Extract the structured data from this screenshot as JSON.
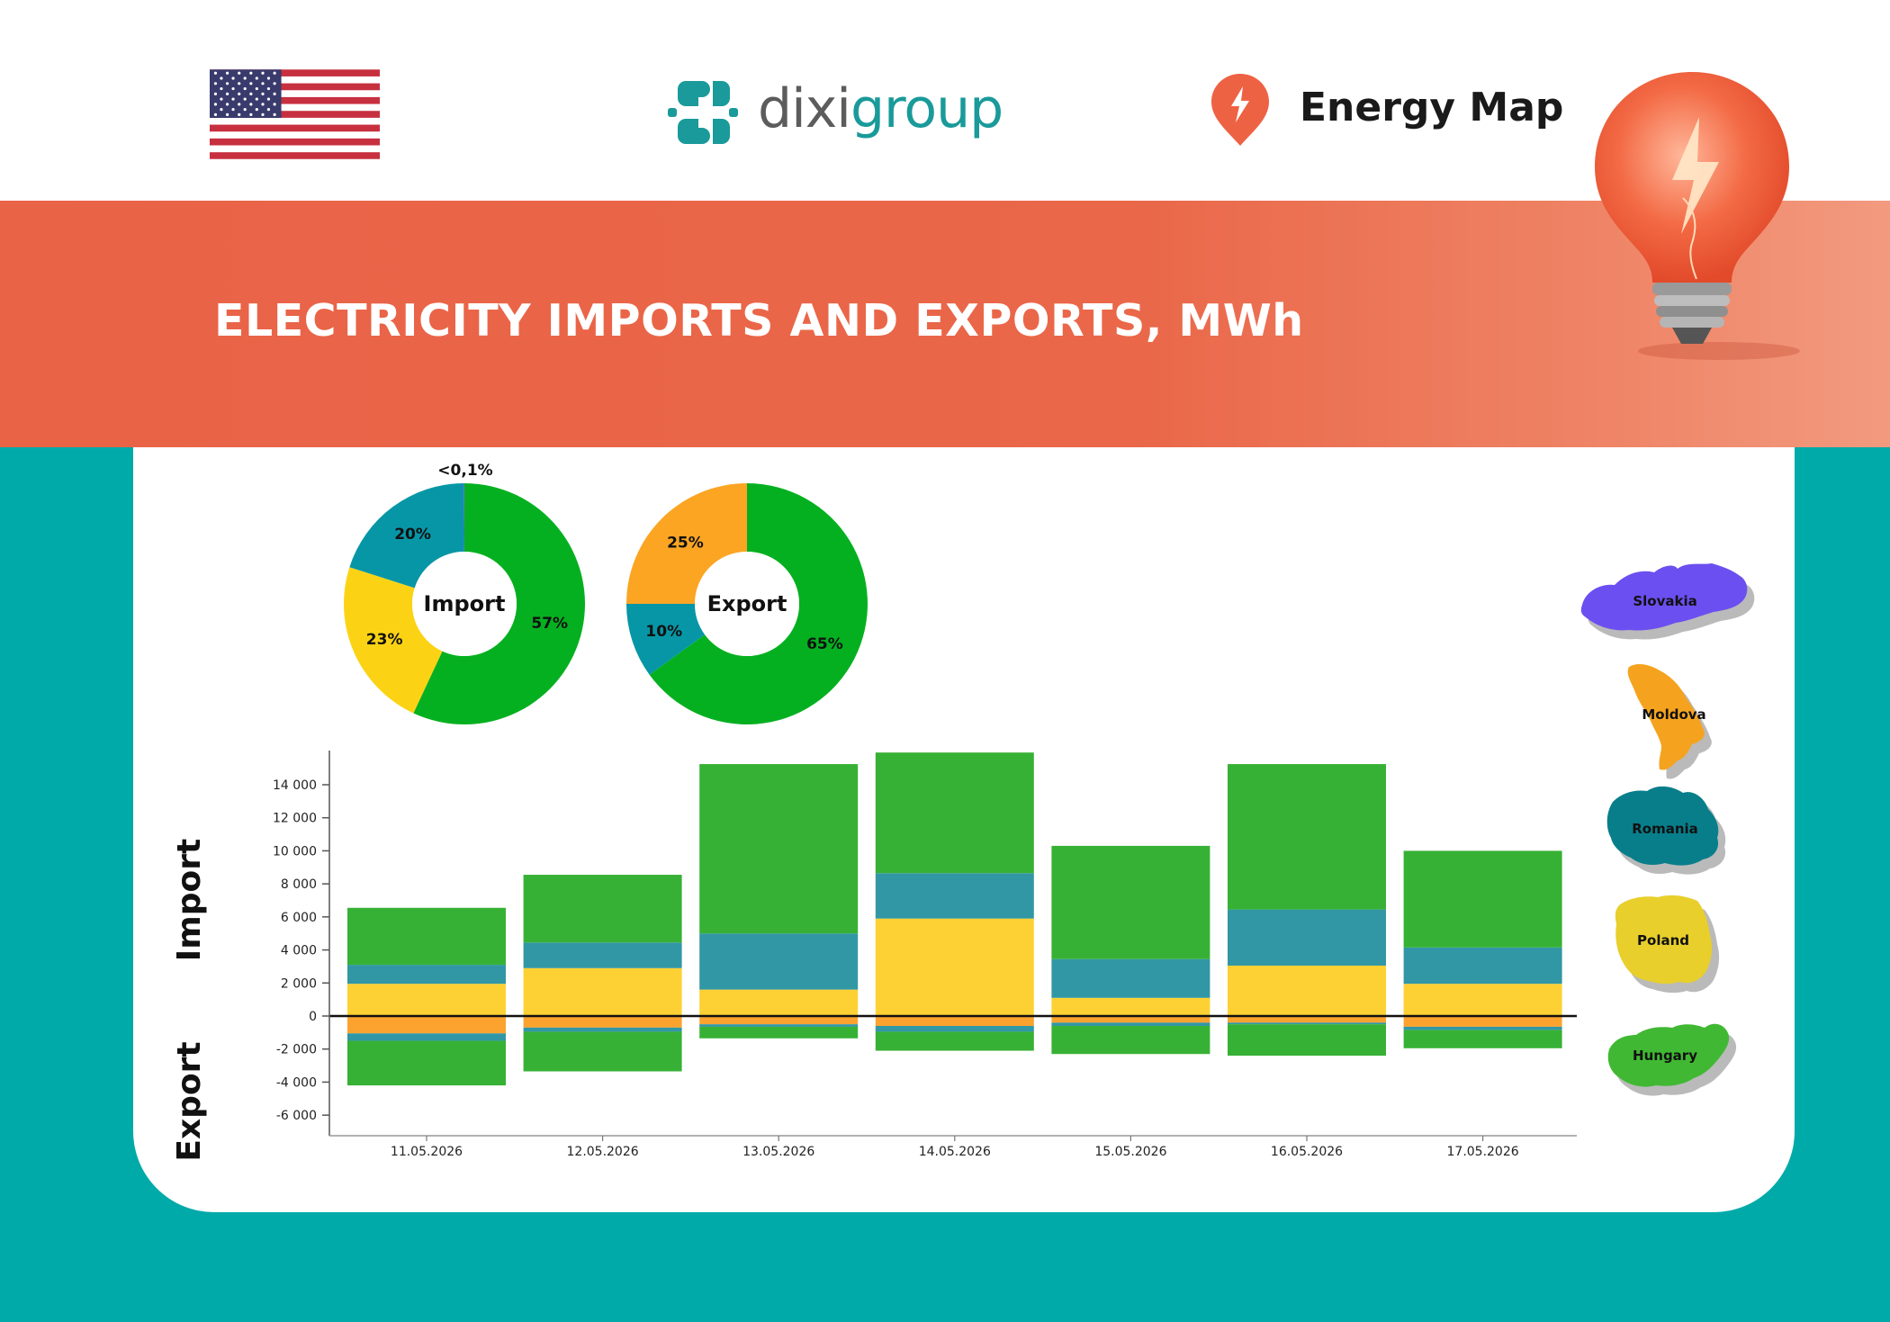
{
  "brand": {
    "dixi_prefix": "dixi",
    "dixi_suffix": "group",
    "energy_map": "Energy Map",
    "colors": {
      "title_band": "#e96347",
      "background": "#00aaa9",
      "dixi_teal": "#1a9a9a"
    }
  },
  "page": {
    "title": "ELECTRICITY IMPORTS AND EXPORTS, MWh"
  },
  "icons": [
    "us-flag-icon",
    "dixigroup-logo-icon",
    "energy-map-pin-icon",
    "light-bulb-icon"
  ],
  "countries": [
    {
      "name": "Slovakia",
      "color": "#6b4ff0"
    },
    {
      "name": "Moldova",
      "color": "#f5a31f"
    },
    {
      "name": "Romania",
      "color": "#087e8b"
    },
    {
      "name": "Poland",
      "color": "#e8cf2c"
    },
    {
      "name": "Hungary",
      "color": "#41b833"
    }
  ],
  "chart_data": [
    {
      "type": "pie",
      "center_label": "Import",
      "slices": [
        {
          "country": "Hungary",
          "label": "57%",
          "value": 57,
          "color": "#05b020"
        },
        {
          "country": "Poland",
          "label": "23%",
          "value": 23,
          "color": "#fcd314"
        },
        {
          "country": "Romania",
          "label": "20%",
          "value": 20,
          "color": "#0796a6"
        },
        {
          "country": "Slovakia",
          "label": "<0,1%",
          "value": 0.1,
          "color": "#6b4ff0"
        }
      ]
    },
    {
      "type": "pie",
      "center_label": "Export",
      "slices": [
        {
          "country": "Hungary",
          "label": "65%",
          "value": 65,
          "color": "#05b020"
        },
        {
          "country": "Romania",
          "label": "10%",
          "value": 10,
          "color": "#0796a6"
        },
        {
          "country": "Moldova",
          "label": "25%",
          "value": 25,
          "color": "#fba523"
        }
      ]
    },
    {
      "type": "bar",
      "stacked": true,
      "ylabel_import": "Import",
      "ylabel_export": "Export",
      "ylim": [
        -7000,
        16000
      ],
      "yticks": [
        {
          "value": 14000,
          "label": "14 000"
        },
        {
          "value": 12000,
          "label": "12 000"
        },
        {
          "value": 10000,
          "label": "10 000"
        },
        {
          "value": 8000,
          "label": "8 000"
        },
        {
          "value": 6000,
          "label": "6 000"
        },
        {
          "value": 4000,
          "label": "4 000"
        },
        {
          "value": 2000,
          "label": "2 000"
        },
        {
          "value": 0,
          "label": "0"
        },
        {
          "value": -2000,
          "label": "-2 000"
        },
        {
          "value": -4000,
          "label": "-4 000"
        },
        {
          "value": -6000,
          "label": "-6 000"
        }
      ],
      "categories": [
        "11.05.2026",
        "12.05.2026",
        "13.05.2026",
        "14.05.2026",
        "15.05.2026",
        "16.05.2026",
        "17.05.2026"
      ],
      "series": [
        {
          "name": "Poland",
          "direction": "import",
          "color": "#fdd133",
          "values": [
            1950,
            2900,
            1600,
            5900,
            1100,
            3050,
            1950
          ]
        },
        {
          "name": "Romania",
          "direction": "import",
          "color": "#3297a5",
          "values": [
            1150,
            1550,
            3400,
            2750,
            2350,
            3400,
            2200
          ]
        },
        {
          "name": "Hungary",
          "direction": "import",
          "color": "#37b135",
          "values": [
            3450,
            4100,
            10250,
            7300,
            6850,
            8800,
            5850
          ]
        },
        {
          "name": "Moldova",
          "direction": "export",
          "color": "#fba32e",
          "values": [
            -1050,
            -700,
            -500,
            -600,
            -400,
            -400,
            -650
          ]
        },
        {
          "name": "Romania",
          "direction": "export",
          "color": "#3297a5",
          "values": [
            -450,
            -250,
            -150,
            -350,
            -200,
            -100,
            -200
          ]
        },
        {
          "name": "Hungary",
          "direction": "export",
          "color": "#37b135",
          "values": [
            -2700,
            -2400,
            -700,
            -1150,
            -1700,
            -1900,
            -1100
          ]
        }
      ]
    }
  ]
}
